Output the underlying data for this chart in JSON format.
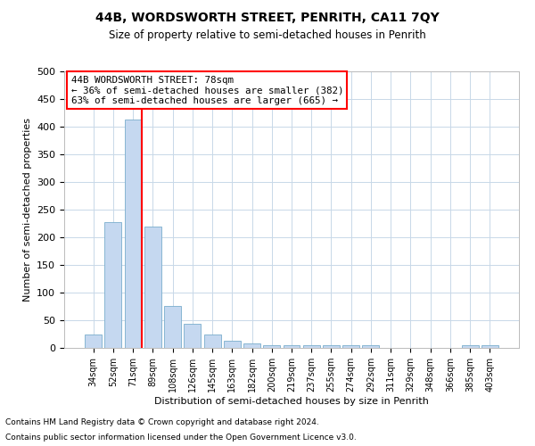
{
  "title": "44B, WORDSWORTH STREET, PENRITH, CA11 7QY",
  "subtitle": "Size of property relative to semi-detached houses in Penrith",
  "xlabel": "Distribution of semi-detached houses by size in Penrith",
  "ylabel": "Number of semi-detached properties",
  "footnote1": "Contains HM Land Registry data © Crown copyright and database right 2024.",
  "footnote2": "Contains public sector information licensed under the Open Government Licence v3.0.",
  "categories": [
    "34sqm",
    "52sqm",
    "71sqm",
    "89sqm",
    "108sqm",
    "126sqm",
    "145sqm",
    "163sqm",
    "182sqm",
    "200sqm",
    "219sqm",
    "237sqm",
    "255sqm",
    "274sqm",
    "292sqm",
    "311sqm",
    "329sqm",
    "348sqm",
    "366sqm",
    "385sqm",
    "403sqm"
  ],
  "values": [
    25,
    228,
    413,
    220,
    76,
    43,
    24,
    13,
    8,
    5,
    5,
    5,
    5,
    5,
    5,
    0,
    0,
    0,
    0,
    5,
    5
  ],
  "bar_color": "#c5d8f0",
  "bar_edge_color": "#7aaecc",
  "vline_color": "red",
  "vline_x": 2.43,
  "annotation_text": "44B WORDSWORTH STREET: 78sqm\n← 36% of semi-detached houses are smaller (382)\n63% of semi-detached houses are larger (665) →",
  "annotation_box_color": "white",
  "annotation_box_edge": "red",
  "ylim": [
    0,
    500
  ],
  "yticks": [
    0,
    50,
    100,
    150,
    200,
    250,
    300,
    350,
    400,
    450,
    500
  ],
  "background_color": "white",
  "grid_color": "#c8d8e8"
}
